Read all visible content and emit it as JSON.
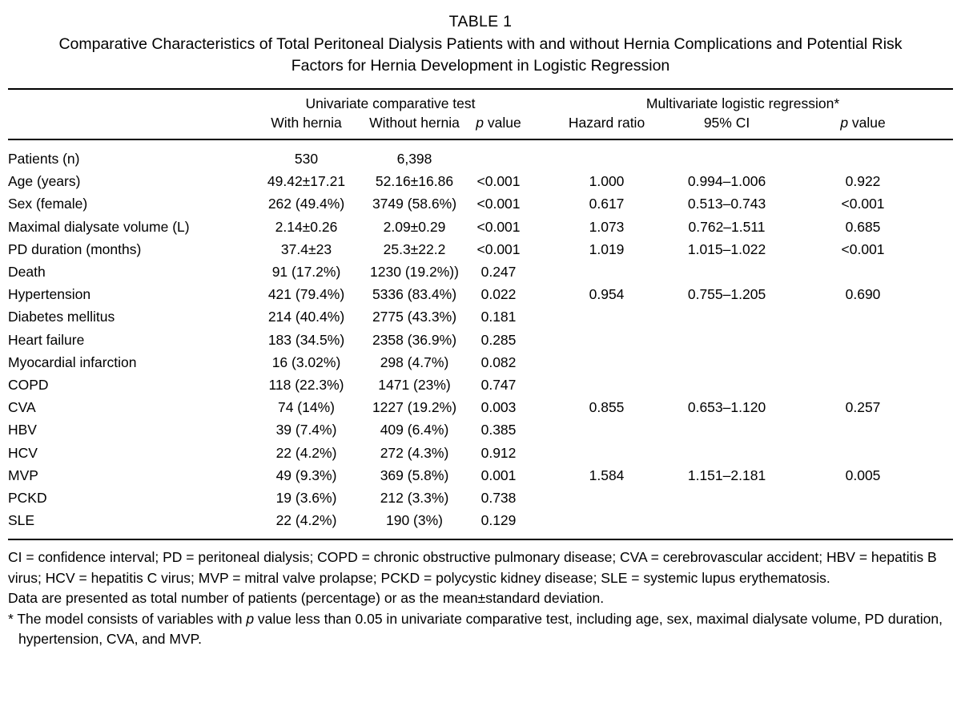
{
  "colors": {
    "background": "#ffffff",
    "text": "#000000",
    "rule": "#000000"
  },
  "caption": {
    "label": "TABLE 1",
    "title": "Comparative Characteristics of Total Peritoneal Dialysis Patients with and without Hernia Complications and Potential Risk Factors for Hernia Development in Logistic Regression"
  },
  "table": {
    "group_headers": {
      "univariate": "Univariate comparative test",
      "multivariate": "Multivariate logistic regression*"
    },
    "column_headers": {
      "with_hernia": "With hernia",
      "without_hernia": "Without hernia",
      "p_italic": "p",
      "p_rest": " value",
      "hazard_ratio": "Hazard ratio",
      "ci": "95% CI"
    },
    "rows": [
      {
        "label": "Patients (n)",
        "with_hernia": "530",
        "without_hernia": "6,398",
        "p_uni": "",
        "hazard_ratio": "",
        "ci": "",
        "p_multi": ""
      },
      {
        "label": "Age (years)",
        "with_hernia": "49.42±17.21",
        "without_hernia": "52.16±16.86",
        "p_uni": "<0.001",
        "hazard_ratio": "1.000",
        "ci": "0.994–1.006",
        "p_multi": "0.922"
      },
      {
        "label": "Sex (female)",
        "with_hernia": "262 (49.4%)",
        "without_hernia": "3749 (58.6%)",
        "p_uni": "<0.001",
        "hazard_ratio": "0.617",
        "ci": "0.513–0.743",
        "p_multi": "<0.001"
      },
      {
        "label": "Maximal dialysate volume (L)",
        "with_hernia": "2.14±0.26",
        "without_hernia": "2.09±0.29",
        "p_uni": "<0.001",
        "hazard_ratio": "1.073",
        "ci": "0.762–1.511",
        "p_multi": "0.685"
      },
      {
        "label": "PD duration (months)",
        "with_hernia": "37.4±23",
        "without_hernia": "25.3±22.2",
        "p_uni": "<0.001",
        "hazard_ratio": "1.019",
        "ci": "1.015–1.022",
        "p_multi": "<0.001"
      },
      {
        "label": "Death",
        "with_hernia": "91 (17.2%)",
        "without_hernia": "1230 (19.2%))",
        "p_uni": "0.247",
        "hazard_ratio": "",
        "ci": "",
        "p_multi": ""
      },
      {
        "label": "Hypertension",
        "with_hernia": "421 (79.4%)",
        "without_hernia": "5336 (83.4%)",
        "p_uni": "0.022",
        "hazard_ratio": "0.954",
        "ci": "0.755–1.205",
        "p_multi": "0.690"
      },
      {
        "label": "Diabetes mellitus",
        "with_hernia": "214 (40.4%)",
        "without_hernia": "2775 (43.3%)",
        "p_uni": "0.181",
        "hazard_ratio": "",
        "ci": "",
        "p_multi": ""
      },
      {
        "label": "Heart failure",
        "with_hernia": "183 (34.5%)",
        "without_hernia": "2358 (36.9%)",
        "p_uni": "0.285",
        "hazard_ratio": "",
        "ci": "",
        "p_multi": ""
      },
      {
        "label": "Myocardial infarction",
        "with_hernia": "16 (3.02%)",
        "without_hernia": "298 (4.7%)",
        "p_uni": "0.082",
        "hazard_ratio": "",
        "ci": "",
        "p_multi": ""
      },
      {
        "label": "COPD",
        "with_hernia": "118 (22.3%)",
        "without_hernia": "1471 (23%)",
        "p_uni": "0.747",
        "hazard_ratio": "",
        "ci": "",
        "p_multi": ""
      },
      {
        "label": "CVA",
        "with_hernia": "74 (14%)",
        "without_hernia": "1227 (19.2%)",
        "p_uni": "0.003",
        "hazard_ratio": "0.855",
        "ci": "0.653–1.120",
        "p_multi": "0.257"
      },
      {
        "label": "HBV",
        "with_hernia": "39 (7.4%)",
        "without_hernia": "409 (6.4%)",
        "p_uni": "0.385",
        "hazard_ratio": "",
        "ci": "",
        "p_multi": ""
      },
      {
        "label": "HCV",
        "with_hernia": "22 (4.2%)",
        "without_hernia": "272 (4.3%)",
        "p_uni": "0.912",
        "hazard_ratio": "",
        "ci": "",
        "p_multi": ""
      },
      {
        "label": "MVP",
        "with_hernia": "49 (9.3%)",
        "without_hernia": "369 (5.8%)",
        "p_uni": "0.001",
        "hazard_ratio": "1.584",
        "ci": "1.151–2.181",
        "p_multi": "0.005"
      },
      {
        "label": "PCKD",
        "with_hernia": "19 (3.6%)",
        "without_hernia": "212 (3.3%)",
        "p_uni": "0.738",
        "hazard_ratio": "",
        "ci": "",
        "p_multi": ""
      },
      {
        "label": "SLE",
        "with_hernia": "22 (4.2%)",
        "without_hernia": "190 (3%)",
        "p_uni": "0.129",
        "hazard_ratio": "",
        "ci": "",
        "p_multi": ""
      }
    ]
  },
  "footnotes": {
    "abbrev": "CI = confidence interval; PD = peritoneal dialysis; COPD = chronic obstructive pulmonary disease; CVA = cerebrovascular accident; HBV = hepatitis B virus; HCV = hepatitis C virus; MVP = mitral valve prolapse; PCKD = polycystic kidney disease; SLE = systemic lupus erythematosis.",
    "data_note": "Data are presented as total number of patients (percentage) or as the mean±standard deviation.",
    "model_note_pre": "* The model consists of variables with ",
    "model_note_italic": "p",
    "model_note_post": " value less than 0.05 in univariate comparative test, including age, sex, maximal dialysate volume, PD duration, hypertension, CVA, and MVP."
  }
}
